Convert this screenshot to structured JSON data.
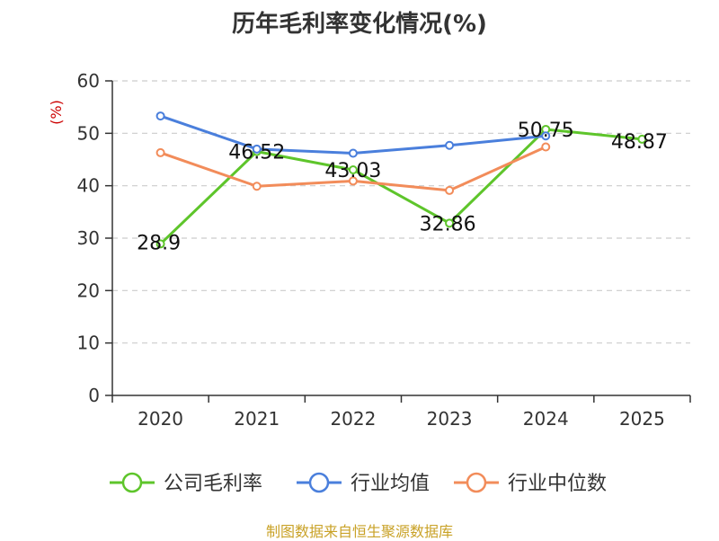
{
  "chart_data": {
    "type": "line",
    "title": "历年毛利率变化情况(%)",
    "ylabel": "(%)",
    "categories": [
      "2020",
      "2021",
      "2022",
      "2023",
      "2024",
      "2025"
    ],
    "ylim": [
      0,
      60
    ],
    "yticks": [
      "0",
      "10",
      "20",
      "30",
      "40",
      "50",
      "60"
    ],
    "grid": true,
    "legend_position": "bottom",
    "series": [
      {
        "name": "公司毛利率",
        "color": "#5ec52b",
        "values": [
          28.9,
          46.52,
          43.03,
          32.86,
          50.75,
          48.87
        ],
        "labels": [
          "28.9",
          "46.52",
          "43.03",
          "32.86",
          "50.75",
          "48.87"
        ]
      },
      {
        "name": "行业均值",
        "color": "#4a7fdc",
        "values": [
          53.3,
          47.0,
          46.2,
          47.7,
          49.5,
          null
        ]
      },
      {
        "name": "行业中位数",
        "color": "#f28c5a",
        "values": [
          46.3,
          39.9,
          40.9,
          39.1,
          47.4,
          null
        ]
      }
    ]
  },
  "footer": {
    "source": "制图数据来自恒生聚源数据库"
  }
}
